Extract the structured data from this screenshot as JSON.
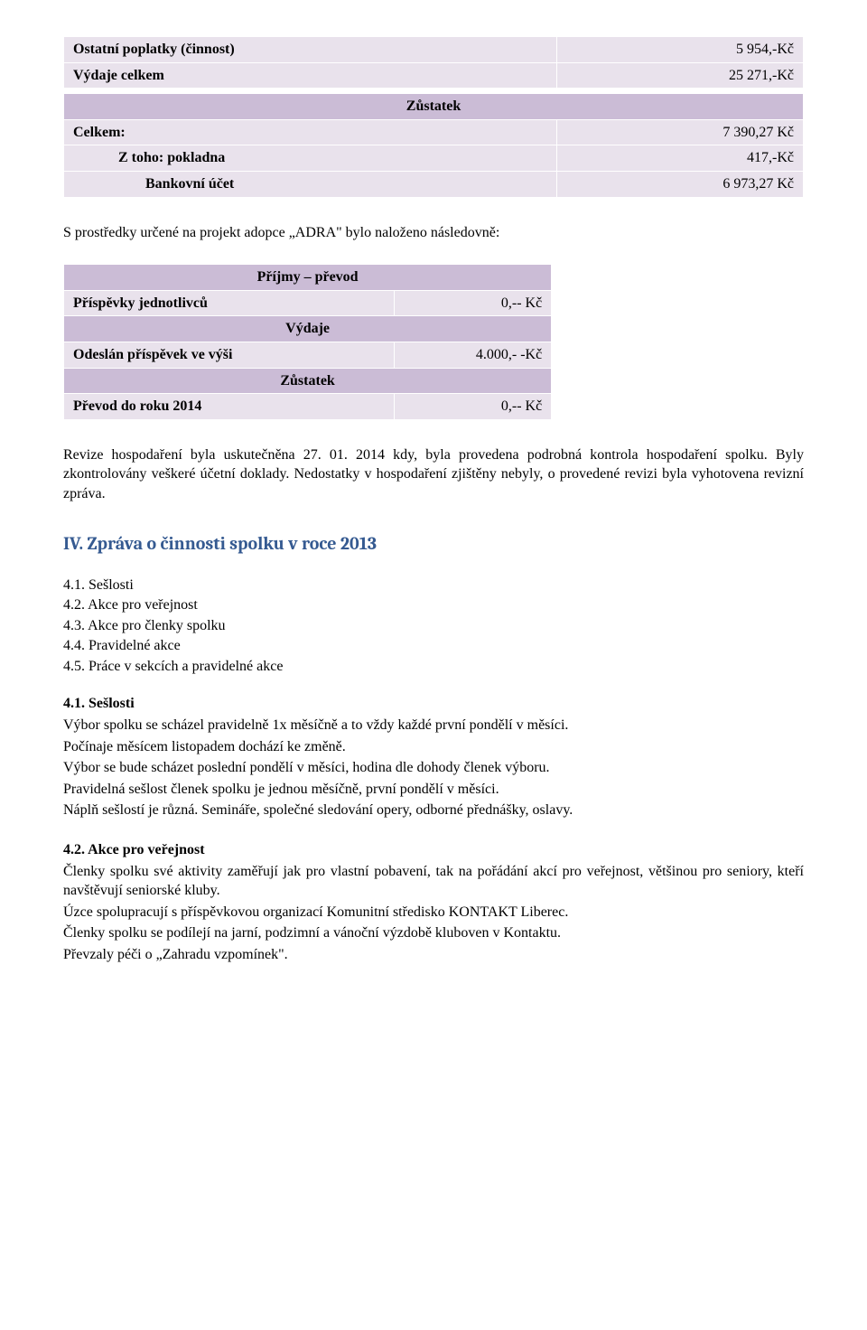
{
  "table1": {
    "rows": [
      {
        "type": "data",
        "label": "Ostatní poplatky (činnost)",
        "value": "5 954,-Kč",
        "labelClass": "label",
        "indent": ""
      },
      {
        "type": "data",
        "label": "Výdaje celkem",
        "value": "25 271,-Kč",
        "labelClass": "label",
        "indent": ""
      },
      {
        "type": "spacer"
      },
      {
        "type": "header",
        "label": "Zůstatek"
      },
      {
        "type": "data",
        "label": "Celkem:",
        "value": "7 390,27 Kč",
        "labelClass": "label",
        "indent": ""
      },
      {
        "type": "data",
        "label": "Z toho: pokladna",
        "value": "417,-Kč",
        "labelClass": "label",
        "indent": "indent1"
      },
      {
        "type": "data",
        "label": "Bankovní účet",
        "value": "6 973,27 Kč",
        "labelClass": "label",
        "indent": "indent2"
      }
    ]
  },
  "para1": "S prostředky určené na projekt adopce „ADRA\" bylo naloženo následovně:",
  "table2": {
    "rows": [
      {
        "type": "header",
        "label": "Příjmy – převod"
      },
      {
        "type": "data",
        "label": "Příspěvky jednotlivců",
        "value": "0,-- Kč",
        "labelClass": "label",
        "indent": ""
      },
      {
        "type": "header",
        "label": "Výdaje"
      },
      {
        "type": "data",
        "label": "Odeslán příspěvek ve výši",
        "value": "4.000,- -Kč",
        "labelClass": "label",
        "indent": ""
      },
      {
        "type": "header",
        "label": "Zůstatek"
      },
      {
        "type": "data",
        "label": "Převod do roku 2014",
        "value": "0,-- Kč",
        "labelClass": "label",
        "indent": ""
      }
    ]
  },
  "para2": "Revize hospodaření byla uskutečněna 27. 01. 2014 kdy, byla provedena podrobná kontrola hospodaření spolku. Byly zkontrolovány veškeré účetní doklady. Nedostatky v hospodaření zjištěny nebyly, o provedené revizi byla vyhotovena revizní zpráva.",
  "sectionTitle": "IV. Zpráva o činnosti spolku v roce 2013",
  "list": [
    "4.1. Sešlosti",
    "4.2. Akce pro veřejnost",
    "4.3. Akce pro členky spolku",
    "4.4. Pravidelné akce",
    "4.5. Práce v sekcích a pravidelné akce"
  ],
  "sub1": {
    "heading": "4.1. Sešlosti",
    "lines": [
      "Výbor spolku se scházel pravidelně 1x měsíčně a to vždy každé první pondělí v měsíci.",
      "Počínaje měsícem listopadem dochází ke změně.",
      "Výbor se bude scházet poslední pondělí v měsíci, hodina dle dohody členek výboru.",
      "Pravidelná sešlost členek spolku je  jednou měsíčně, první pondělí v měsíci.",
      "Náplň sešlostí je různá. Semináře, společné sledování opery, odborné přednášky, oslavy."
    ]
  },
  "sub2": {
    "heading": "4.2. Akce pro veřejnost",
    "lines": [
      "Členky spolku své aktivity zaměřují jak pro vlastní pobavení, tak na pořádání akcí pro veřejnost, většinou pro seniory, kteří navštěvují seniorské kluby.",
      "Úzce spolupracují s příspěvkovou organizací Komunitní středisko KONTAKT Liberec.",
      "Členky spolku se podílejí na jarní, podzimní a vánoční výzdobě kluboven v Kontaktu.",
      "Převzaly péči o „Zahradu vzpomínek\"."
    ]
  },
  "colors": {
    "rowData": "#e9e2ec",
    "rowHeader": "#cbbcd6",
    "sectionTitle": "#355a91",
    "border": "#ffffff",
    "text": "#000000",
    "background": "#ffffff"
  }
}
